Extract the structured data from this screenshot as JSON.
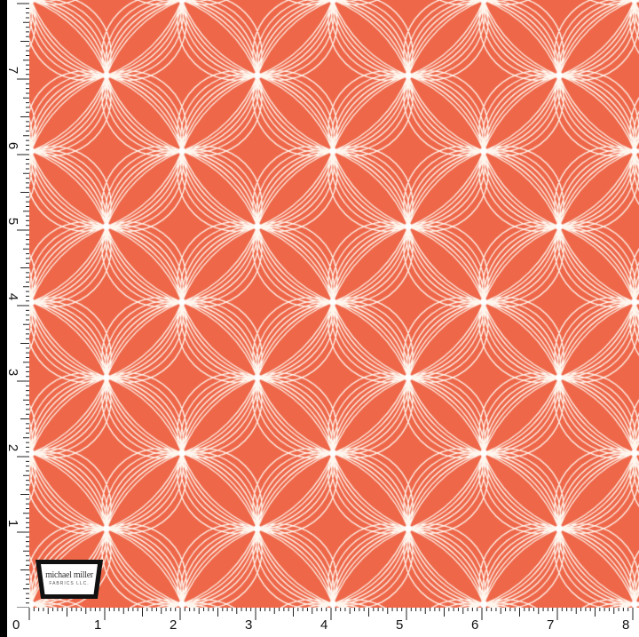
{
  "colors": {
    "fabric": "#ee6749",
    "line": "#fff6ee",
    "ruler": "#ffffff"
  },
  "logo": {
    "name": "michael miller",
    "sub": "FABRICS LLC."
  },
  "ruler_vertical": [
    "7",
    "6",
    "5",
    "4",
    "3",
    "2",
    "1"
  ],
  "ruler_horizontal": [
    "0",
    "1",
    "2",
    "3",
    "4",
    "5",
    "6",
    "7",
    "8"
  ]
}
